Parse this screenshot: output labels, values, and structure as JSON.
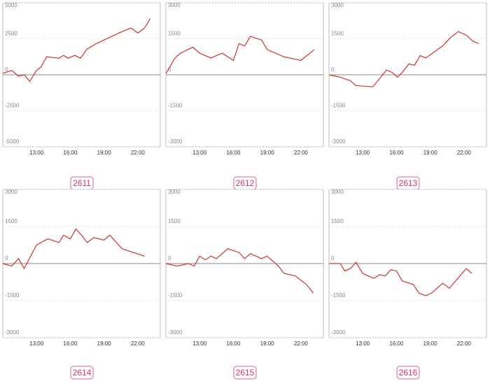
{
  "chart_data": [
    {
      "type": "line",
      "title": "2611",
      "x": [
        10,
        10.8,
        11.4,
        11.9,
        12.4,
        13,
        13.4,
        13.9,
        15,
        15.4,
        15.8,
        16.4,
        16.9,
        17.5,
        18.4,
        20.6,
        21.4,
        22,
        22.6,
        23.1
      ],
      "series": [
        {
          "color": "#d0342c",
          "values": [
            100,
            300,
            -100,
            0,
            -450,
            300,
            550,
            1250,
            1150,
            1350,
            1150,
            1350,
            1150,
            1800,
            2200,
            3000,
            3250,
            2900,
            3250,
            3900
          ]
        }
      ],
      "xlim": [
        10,
        24
      ],
      "ylim": [
        -5000,
        5000
      ],
      "xticks": [
        {
          "value": 13,
          "label": "13:00"
        },
        {
          "value": 16,
          "label": "16:00"
        },
        {
          "value": 19,
          "label": "19:00"
        },
        {
          "value": 22,
          "label": "22:00"
        }
      ],
      "yticks": [
        5000,
        2500,
        0,
        -2500,
        -5000
      ]
    },
    {
      "type": "line",
      "title": "2612",
      "x": [
        10,
        10.8,
        11.3,
        12.4,
        13,
        14,
        15,
        16,
        16.5,
        17,
        17.5,
        18.5,
        19,
        20.5,
        22,
        23.2
      ],
      "series": [
        {
          "color": "#d0342c",
          "values": [
            50,
            700,
            900,
            1150,
            900,
            700,
            900,
            600,
            1300,
            1200,
            1600,
            1450,
            1050,
            750,
            600,
            1050
          ]
        }
      ],
      "xlim": [
        10,
        24
      ],
      "ylim": [
        -3000,
        3000
      ],
      "xticks": [
        {
          "value": 13,
          "label": "13:00"
        },
        {
          "value": 16,
          "label": "16:00"
        },
        {
          "value": 19,
          "label": "19:00"
        },
        {
          "value": 22,
          "label": "22:00"
        }
      ],
      "yticks": [
        3000,
        1500,
        0,
        -1500,
        -3000
      ]
    },
    {
      "type": "line",
      "title": "2613",
      "x": [
        10,
        11,
        11.9,
        12.4,
        13.9,
        14.6,
        15.1,
        15.6,
        16.1,
        16.6,
        17.1,
        17.6,
        18.1,
        18.6,
        20.1,
        20.8,
        21.5,
        22.2,
        22.8,
        23.3
      ],
      "series": [
        {
          "color": "#d0342c",
          "values": [
            0,
            -100,
            -250,
            -450,
            -500,
            -100,
            200,
            100,
            -100,
            150,
            450,
            400,
            800,
            700,
            1200,
            1550,
            1800,
            1650,
            1400,
            1300
          ]
        }
      ],
      "xlim": [
        10,
        24
      ],
      "ylim": [
        -3000,
        3000
      ],
      "xticks": [
        {
          "value": 13,
          "label": "13:00"
        },
        {
          "value": 16,
          "label": "16:00"
        },
        {
          "value": 19,
          "label": "19:00"
        },
        {
          "value": 22,
          "label": "22:00"
        }
      ],
      "yticks": [
        3000,
        1500,
        0,
        -1500,
        -3000
      ]
    },
    {
      "type": "line",
      "title": "2614",
      "x": [
        10,
        10.8,
        11.4,
        11.9,
        13,
        14,
        15,
        15.4,
        16,
        16.5,
        17,
        17.5,
        18.1,
        19,
        19.5,
        20.6,
        22.6
      ],
      "series": [
        {
          "color": "#d0342c",
          "values": [
            0,
            -100,
            200,
            -200,
            750,
            1000,
            850,
            1150,
            1000,
            1400,
            1150,
            850,
            1050,
            950,
            1150,
            600,
            300
          ]
        }
      ],
      "xlim": [
        10,
        24
      ],
      "ylim": [
        -3000,
        3000
      ],
      "xticks": [
        {
          "value": 13,
          "label": "13:00"
        },
        {
          "value": 16,
          "label": "16:00"
        },
        {
          "value": 19,
          "label": "19:00"
        },
        {
          "value": 22,
          "label": "22:00"
        }
      ],
      "yticks": [
        3000,
        1500,
        0,
        -1500,
        -3000
      ]
    },
    {
      "type": "line",
      "title": "2615",
      "x": [
        10,
        11,
        12,
        12.5,
        13,
        13.5,
        14,
        14.5,
        15.5,
        16.5,
        17,
        17.5,
        18.5,
        19,
        20,
        20.5,
        21.5,
        22.5,
        23.1
      ],
      "series": [
        {
          "color": "#d0342c",
          "values": [
            0,
            -100,
            0,
            -100,
            300,
            150,
            300,
            200,
            600,
            450,
            200,
            400,
            200,
            300,
            -100,
            -400,
            -500,
            -850,
            -1200
          ]
        }
      ],
      "xlim": [
        10,
        24
      ],
      "ylim": [
        -3000,
        3000
      ],
      "xticks": [
        {
          "value": 13,
          "label": "13:00"
        },
        {
          "value": 16,
          "label": "16:00"
        },
        {
          "value": 19,
          "label": "19:00"
        },
        {
          "value": 22,
          "label": "22:00"
        }
      ],
      "yticks": [
        3000,
        1500,
        0,
        -1500,
        -3000
      ]
    },
    {
      "type": "line",
      "title": "2616",
      "x": [
        10,
        11,
        11.4,
        11.9,
        12.4,
        13,
        14,
        14.5,
        15,
        15.5,
        16,
        16.5,
        17.5,
        18,
        18.6,
        19.1,
        20.1,
        20.7,
        22.2,
        22.7
      ],
      "series": [
        {
          "color": "#d0342c",
          "values": [
            0,
            0,
            -300,
            -200,
            50,
            -400,
            -600,
            -450,
            -500,
            -250,
            -300,
            -700,
            -850,
            -1200,
            -1300,
            -1200,
            -800,
            -1000,
            -200,
            -400
          ]
        }
      ],
      "xlim": [
        10,
        24
      ],
      "ylim": [
        -3000,
        3000
      ],
      "xticks": [
        {
          "value": 13,
          "label": "13:00"
        },
        {
          "value": 16,
          "label": "16:00"
        },
        {
          "value": 19,
          "label": "19:00"
        },
        {
          "value": 22,
          "label": "22:00"
        }
      ],
      "yticks": [
        3000,
        1500,
        0,
        -1500,
        -3000
      ]
    }
  ]
}
